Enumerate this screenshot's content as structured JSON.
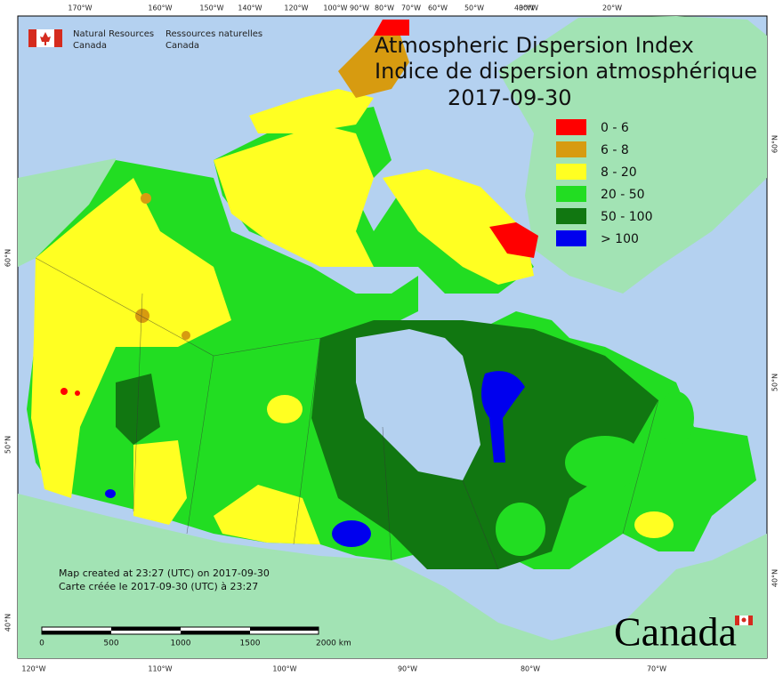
{
  "header": {
    "title": "Atmospheric Dispersion Index",
    "title_fr": "Indice de dispersion atmosphérique",
    "date": "2017-09-30"
  },
  "agency": {
    "en": [
      "Natural Resources",
      "Canada"
    ],
    "fr": [
      "Ressources naturelles",
      "Canada"
    ]
  },
  "legend": [
    {
      "label": "0 - 6",
      "color": "#ff0000"
    },
    {
      "label": "6 - 8",
      "color": "#d79b10"
    },
    {
      "label": "8 - 20",
      "color": "#ffff22"
    },
    {
      "label": "20 - 50",
      "color": "#22dd22"
    },
    {
      "label": "50 - 100",
      "color": "#117711"
    },
    {
      "label": "> 100",
      "color": "#0000ee"
    }
  ],
  "graticule": {
    "top": [
      "170°W",
      "160°W",
      "150°W",
      "140°W",
      "120°W",
      "100°W",
      "90°W",
      "80°W",
      "70°W",
      "60°W",
      "50°W",
      "40°W",
      "30°W",
      "20°W"
    ],
    "bottom": [
      "120°W",
      "110°W",
      "100°W",
      "90°W",
      "80°W",
      "70°W"
    ],
    "left": [
      "60°N",
      "50°N",
      "40°N"
    ],
    "right": [
      "60°N",
      "50°N",
      "40°N"
    ]
  },
  "notes": [
    "Map created at 23:27 (UTC) on 2017-09-30",
    "Carte créée le 2017-09-30 (UTC) à 23:27"
  ],
  "scale_bar": [
    "0",
    "500",
    "1000",
    "1500",
    "2000 km"
  ],
  "wordmark": "Canada"
}
